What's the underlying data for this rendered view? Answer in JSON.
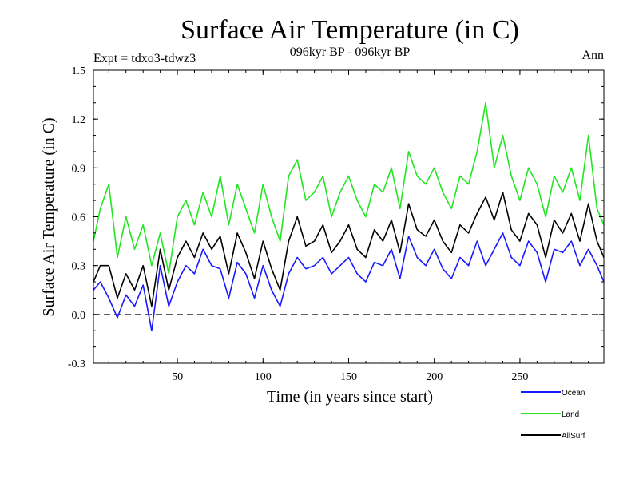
{
  "chart_data": {
    "type": "line",
    "title": "Surface Air Temperature (in C)",
    "subtitle_center": "096kyr BP - 096kyr BP",
    "subtitle_left": "Expt = tdxo3-tdwz3",
    "subtitle_right": "Ann",
    "xlabel": "Time (in years since start)",
    "ylabel": "Surface Air Temperature (in C)",
    "xlim": [
      1,
      299
    ],
    "ylim": [
      -0.3,
      1.5
    ],
    "xticks": [
      50,
      100,
      150,
      200,
      250
    ],
    "yticks": [
      -0.3,
      0.0,
      0.3,
      0.6,
      0.9,
      1.2,
      1.5
    ],
    "ytick_labels": [
      "-0.3",
      "0.0",
      "0.3",
      "0.6",
      "0.9",
      "1.2",
      "1.5"
    ],
    "zero_line": "dashed",
    "grid": false,
    "legend_position": "bottom-right",
    "series": [
      {
        "name": "Ocean",
        "color": "#1a1aff",
        "x": [
          1,
          5,
          10,
          15,
          20,
          25,
          30,
          35,
          40,
          45,
          50,
          55,
          60,
          65,
          70,
          75,
          80,
          85,
          90,
          95,
          100,
          105,
          110,
          115,
          120,
          125,
          130,
          135,
          140,
          145,
          150,
          155,
          160,
          165,
          170,
          175,
          180,
          185,
          190,
          195,
          200,
          205,
          210,
          215,
          220,
          225,
          230,
          235,
          240,
          245,
          250,
          255,
          260,
          265,
          270,
          275,
          280,
          285,
          290,
          295,
          299
        ],
        "values": [
          0.15,
          0.2,
          0.1,
          -0.02,
          0.12,
          0.05,
          0.18,
          -0.1,
          0.3,
          0.05,
          0.2,
          0.3,
          0.25,
          0.4,
          0.3,
          0.28,
          0.1,
          0.32,
          0.25,
          0.1,
          0.3,
          0.15,
          0.05,
          0.25,
          0.35,
          0.28,
          0.3,
          0.35,
          0.25,
          0.3,
          0.35,
          0.25,
          0.2,
          0.32,
          0.3,
          0.4,
          0.22,
          0.48,
          0.35,
          0.3,
          0.4,
          0.28,
          0.22,
          0.35,
          0.3,
          0.45,
          0.3,
          0.4,
          0.5,
          0.35,
          0.3,
          0.45,
          0.38,
          0.2,
          0.4,
          0.38,
          0.45,
          0.3,
          0.4,
          0.3,
          0.2
        ]
      },
      {
        "name": "Land",
        "color": "#22e622",
        "x": [
          1,
          5,
          10,
          15,
          20,
          25,
          30,
          35,
          40,
          45,
          50,
          55,
          60,
          65,
          70,
          75,
          80,
          85,
          90,
          95,
          100,
          105,
          110,
          115,
          120,
          125,
          130,
          135,
          140,
          145,
          150,
          155,
          160,
          165,
          170,
          175,
          180,
          185,
          190,
          195,
          200,
          205,
          210,
          215,
          220,
          225,
          230,
          235,
          240,
          245,
          250,
          255,
          260,
          265,
          270,
          275,
          280,
          285,
          290,
          295,
          299
        ],
        "values": [
          0.45,
          0.65,
          0.8,
          0.35,
          0.6,
          0.4,
          0.55,
          0.3,
          0.5,
          0.25,
          0.6,
          0.7,
          0.55,
          0.75,
          0.6,
          0.85,
          0.55,
          0.8,
          0.65,
          0.5,
          0.8,
          0.6,
          0.45,
          0.85,
          0.95,
          0.7,
          0.75,
          0.85,
          0.6,
          0.75,
          0.85,
          0.7,
          0.6,
          0.8,
          0.75,
          0.9,
          0.65,
          1.0,
          0.85,
          0.8,
          0.9,
          0.75,
          0.65,
          0.85,
          0.8,
          1.0,
          1.3,
          0.9,
          1.1,
          0.85,
          0.7,
          0.9,
          0.8,
          0.6,
          0.85,
          0.75,
          0.9,
          0.7,
          1.1,
          0.65,
          0.55
        ]
      },
      {
        "name": "AllSurf",
        "color": "#000000",
        "x": [
          1,
          5,
          10,
          15,
          20,
          25,
          30,
          35,
          40,
          45,
          50,
          55,
          60,
          65,
          70,
          75,
          80,
          85,
          90,
          95,
          100,
          105,
          110,
          115,
          120,
          125,
          130,
          135,
          140,
          145,
          150,
          155,
          160,
          165,
          170,
          175,
          180,
          185,
          190,
          195,
          200,
          205,
          210,
          215,
          220,
          225,
          230,
          235,
          240,
          245,
          250,
          255,
          260,
          265,
          270,
          275,
          280,
          285,
          290,
          295,
          299
        ],
        "values": [
          0.2,
          0.3,
          0.3,
          0.1,
          0.25,
          0.15,
          0.3,
          0.05,
          0.4,
          0.15,
          0.35,
          0.45,
          0.35,
          0.5,
          0.4,
          0.48,
          0.25,
          0.5,
          0.38,
          0.22,
          0.45,
          0.28,
          0.15,
          0.45,
          0.6,
          0.42,
          0.45,
          0.55,
          0.38,
          0.45,
          0.55,
          0.4,
          0.35,
          0.52,
          0.45,
          0.58,
          0.38,
          0.68,
          0.52,
          0.48,
          0.58,
          0.45,
          0.38,
          0.55,
          0.5,
          0.62,
          0.72,
          0.58,
          0.75,
          0.52,
          0.45,
          0.62,
          0.55,
          0.35,
          0.58,
          0.5,
          0.62,
          0.45,
          0.68,
          0.45,
          0.35
        ]
      }
    ]
  }
}
